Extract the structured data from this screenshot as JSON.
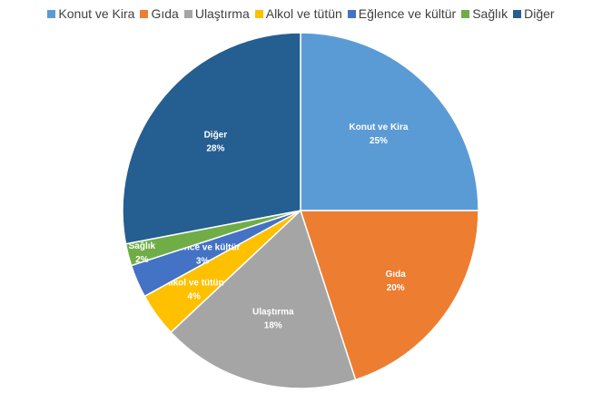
{
  "chart_data": {
    "type": "pie",
    "title": "",
    "start_angle_deg": 0,
    "slices": [
      {
        "label": "Konut ve Kira",
        "value": 25,
        "percent_label": "25%",
        "color": "#5B9BD5"
      },
      {
        "label": "Gıda",
        "value": 20,
        "percent_label": "20%",
        "color": "#ED7D31"
      },
      {
        "label": "Ulaştırma",
        "value": 18,
        "percent_label": "18%",
        "color": "#A5A5A5"
      },
      {
        "label": "Alkol ve tütün",
        "value": 4,
        "percent_label": "4%",
        "color": "#FFC000"
      },
      {
        "label": "Eğlence ve kültür",
        "value": 3,
        "percent_label": "3%",
        "color": "#4472C4"
      },
      {
        "label": "Sağlık",
        "value": 2,
        "percent_label": "2%",
        "color": "#70AD47"
      },
      {
        "label": "Diğer",
        "value": 28,
        "percent_label": "28%",
        "color": "#255E91"
      }
    ],
    "legend_position": "top"
  }
}
